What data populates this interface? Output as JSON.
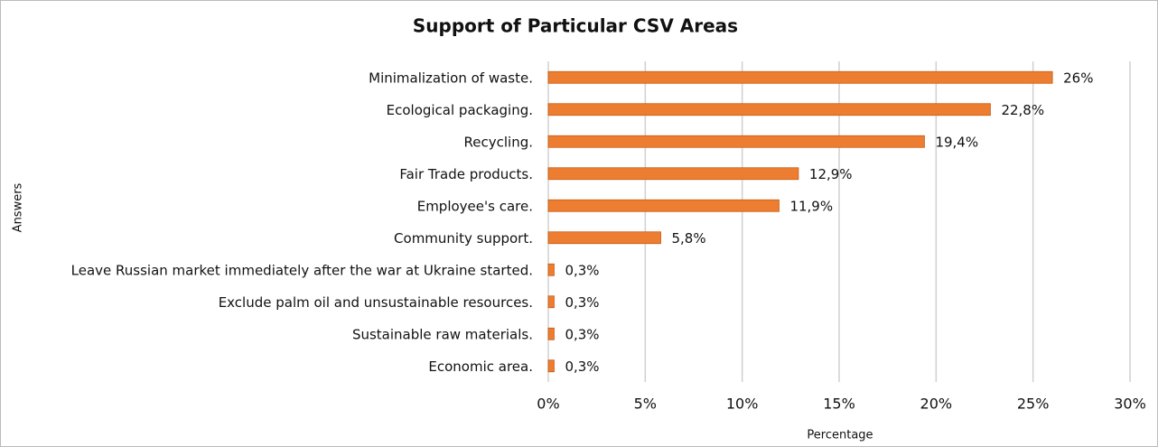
{
  "chart_data": {
    "type": "bar",
    "orientation": "horizontal",
    "title": "Support of  Particular CSV Areas",
    "x_label": "Percentage",
    "y_label": "Answers",
    "categories": [
      "Minimalization of waste.",
      "Ecological packaging.",
      "Recycling.",
      "Fair Trade products.",
      "Employee's care.",
      "Community support.",
      "Leave Russian market immediately after the war at Ukraine started.",
      "Exclude palm oil and unsustainable resources.",
      "Sustainable raw materials.",
      "Economic area."
    ],
    "values": [
      26,
      22.8,
      19.4,
      12.9,
      11.9,
      5.8,
      0.3,
      0.3,
      0.3,
      0.3
    ],
    "value_labels": [
      "26%",
      "22,8%",
      "19,4%",
      "12,9%",
      "11,9%",
      "5,8%",
      "0,3%",
      "0,3%",
      "0,3%",
      "0,3%"
    ],
    "color": "#ed7d31",
    "xlim": [
      0,
      30
    ],
    "xticks": [
      {
        "value": 0,
        "label": "0%"
      },
      {
        "value": 5,
        "label": "5%"
      },
      {
        "value": 10,
        "label": "10%"
      },
      {
        "value": 15,
        "label": "15%"
      },
      {
        "value": 20,
        "label": "20%"
      },
      {
        "value": 25,
        "label": "25%"
      },
      {
        "value": 30,
        "label": "30%"
      }
    ],
    "grid": true
  }
}
